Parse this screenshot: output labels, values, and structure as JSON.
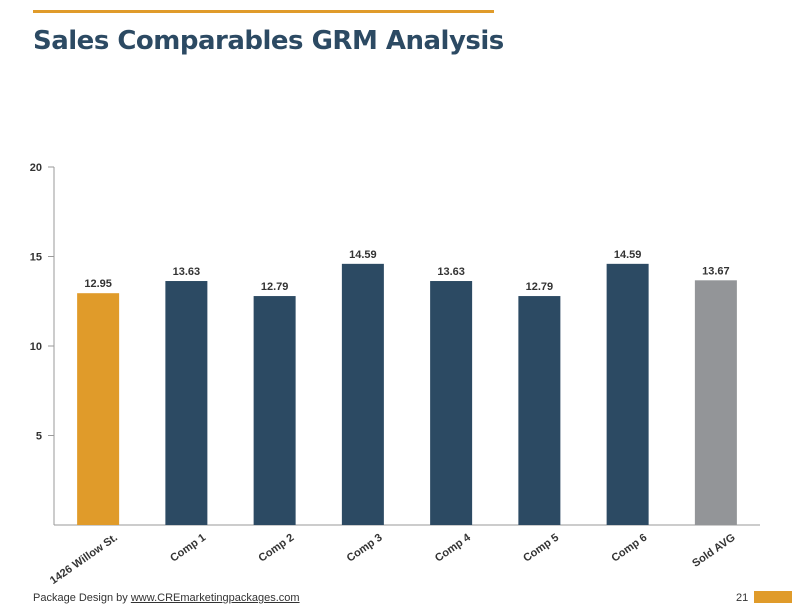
{
  "page": {
    "title": "Sales Comparables GRM Analysis",
    "footer_prefix": "Package Design by ",
    "footer_link": "www.CREmarketingpackages.com",
    "page_number": "21"
  },
  "colors": {
    "accent": "#e09b2a",
    "comp_bar": "#2c4a63",
    "average_bar": "#939598",
    "title": "#2c4a63",
    "axis": "#9a9a9a"
  },
  "chart_data": {
    "type": "bar",
    "categories": [
      "1426 Willow St.",
      "Comp 1",
      "Comp 2",
      "Comp 3",
      "Comp 4",
      "Comp 5",
      "Comp 6",
      "Sold AVG"
    ],
    "values": [
      12.95,
      13.63,
      12.79,
      14.59,
      13.63,
      12.79,
      14.59,
      13.67
    ],
    "value_labels": [
      "12.95",
      "13.63",
      "12.79",
      "14.59",
      "13.63",
      "12.79",
      "14.59",
      "13.67"
    ],
    "bar_colors": [
      "#e09b2a",
      "#2c4a63",
      "#2c4a63",
      "#2c4a63",
      "#2c4a63",
      "#2c4a63",
      "#2c4a63",
      "#939598"
    ],
    "yticks": [
      5,
      10,
      15,
      20
    ],
    "ylim": [
      0,
      20
    ],
    "title": "",
    "xlabel": "",
    "ylabel": "",
    "grid": false,
    "legend": "none"
  }
}
